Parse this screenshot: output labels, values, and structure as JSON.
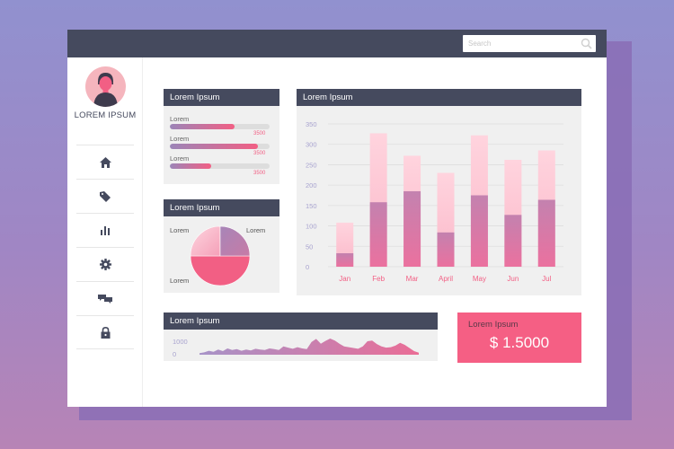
{
  "search": {
    "placeholder": "Search"
  },
  "user": {
    "name": "LOREM IPSUM"
  },
  "sidebar": {
    "items": [
      {
        "icon": "home-icon"
      },
      {
        "icon": "tag-icon"
      },
      {
        "icon": "bar-chart-icon"
      },
      {
        "icon": "gear-icon"
      },
      {
        "icon": "chat-icon"
      },
      {
        "icon": "lock-icon"
      }
    ]
  },
  "progress_card": {
    "title": "Lorem Ipsum",
    "items": [
      {
        "label": "Lorem",
        "value": "3500",
        "fraction": 0.65
      },
      {
        "label": "Lorem",
        "value": "3500",
        "fraction": 0.88
      },
      {
        "label": "Lorem",
        "value": "3500",
        "fraction": 0.41
      }
    ]
  },
  "pie_card": {
    "title": "Lorem Ipsum",
    "labels": [
      "Lorem",
      "Lorem",
      "Lorem"
    ]
  },
  "bar_card": {
    "title": "Lorem Ipsum"
  },
  "line_card": {
    "title": "Lorem Ipsum"
  },
  "total_card": {
    "label": "Lorem Ipsum",
    "value": "$ 1.5000"
  },
  "colors": {
    "dark": "#454a5e",
    "accent": "#f25f84",
    "bar_light": "#fbb8c9",
    "bar_dark": "#c5709d",
    "card_bg": "#f0f0f0"
  },
  "chart_data": [
    {
      "type": "bar",
      "title": "Lorem Ipsum",
      "categories": [
        "Jan",
        "Feb",
        "Mar",
        "April",
        "May",
        "Jun",
        "Jul"
      ],
      "series": [
        {
          "values": [
            33,
            158,
            185,
            84,
            175,
            127,
            164
          ]
        },
        {
          "values": [
            108,
            327,
            272,
            230,
            322,
            262,
            285
          ]
        }
      ],
      "ylim": [
        0,
        350
      ],
      "yticks": [
        "0",
        "50",
        "100",
        "150",
        "200",
        "250",
        "300",
        "350"
      ],
      "stacked": "overlay",
      "grid": true
    },
    {
      "type": "area",
      "title": "Lorem Ipsum",
      "yticks": [
        "0",
        "1000"
      ],
      "ylim": [
        0,
        1000
      ],
      "values": [
        80,
        120,
        200,
        150,
        260,
        180,
        320,
        240,
        280,
        200,
        260,
        220,
        300,
        260,
        240,
        320,
        280,
        240,
        420,
        360,
        300,
        380,
        320,
        280,
        640,
        800,
        560,
        700,
        820,
        720,
        560,
        420,
        380,
        340,
        300,
        420,
        680,
        720,
        540,
        420,
        360,
        380,
        460,
        600,
        500,
        340,
        180,
        100
      ]
    },
    {
      "type": "pie",
      "title": "Lorem Ipsum",
      "values": [
        50,
        25,
        25
      ]
    }
  ]
}
